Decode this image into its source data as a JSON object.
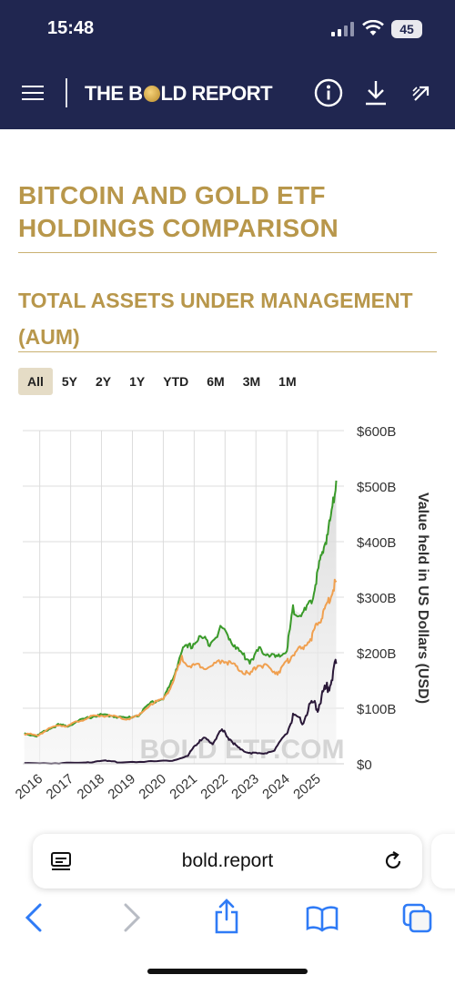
{
  "status": {
    "time": "15:48",
    "battery": "45"
  },
  "header": {
    "logo_left": "THE B",
    "logo_right": "LD REPORT",
    "icons": [
      "menu-icon",
      "info-icon",
      "download-icon",
      "share-icon"
    ]
  },
  "article": {
    "title": "BITCOIN AND GOLD ETF HOLDINGS COMPARISON",
    "subtitle": "TOTAL ASSETS UNDER MANAGEMENT (AUM)"
  },
  "ranges": {
    "items": [
      "All",
      "5Y",
      "2Y",
      "1Y",
      "YTD",
      "6M",
      "3M",
      "1M"
    ],
    "selected": "All"
  },
  "chart_data": {
    "type": "area",
    "title": "",
    "xlabel": "",
    "ylabel": "Value held in US Dollars (USD)",
    "ylim": [
      0,
      600
    ],
    "yticks": [
      "$0",
      "$100B",
      "$200B",
      "$300B",
      "$400B",
      "$500B",
      "$600B"
    ],
    "xticks": [
      "2016",
      "2017",
      "2018",
      "2019",
      "2020",
      "2021",
      "2022",
      "2023",
      "2024",
      "2025"
    ],
    "watermark": "BOLD ETF.COM",
    "grid": true,
    "legend": "none",
    "series": [
      {
        "color": "#3a9a2a",
        "x": [
          2015.5,
          2015.9,
          2016.2,
          2016.6,
          2016.9,
          2017.3,
          2017.7,
          2018.0,
          2018.4,
          2018.8,
          2019.2,
          2019.6,
          2020.0,
          2020.3,
          2020.6,
          2020.9,
          2021.2,
          2021.5,
          2021.9,
          2022.2,
          2022.5,
          2022.8,
          2023.1,
          2023.4,
          2023.7,
          2024.0,
          2024.2,
          2024.5,
          2024.8,
          2025.0,
          2025.2,
          2025.4,
          2025.6
        ],
        "y": [
          55,
          50,
          60,
          70,
          68,
          78,
          85,
          88,
          86,
          82,
          88,
          110,
          118,
          150,
          205,
          212,
          228,
          218,
          245,
          222,
          200,
          185,
          205,
          198,
          190,
          205,
          278,
          268,
          290,
          345,
          390,
          435,
          510
        ]
      },
      {
        "color": "#f0a050",
        "x": [
          2015.5,
          2015.9,
          2016.2,
          2016.6,
          2016.9,
          2017.3,
          2017.7,
          2018.0,
          2018.4,
          2018.8,
          2019.2,
          2019.6,
          2020.0,
          2020.3,
          2020.6,
          2020.9,
          2021.2,
          2021.5,
          2021.9,
          2022.2,
          2022.5,
          2022.8,
          2023.1,
          2023.4,
          2023.7,
          2024.0,
          2024.2,
          2024.5,
          2024.8,
          2025.0,
          2025.2,
          2025.4,
          2025.6
        ],
        "y": [
          55,
          50,
          60,
          70,
          68,
          78,
          85,
          87,
          85,
          80,
          86,
          108,
          116,
          145,
          190,
          175,
          178,
          172,
          188,
          180,
          168,
          160,
          180,
          172,
          165,
          182,
          198,
          208,
          228,
          252,
          272,
          300,
          330
        ]
      },
      {
        "color": "#2a1838",
        "x": [
          2015.5,
          2016.5,
          2017.5,
          2018.0,
          2018.5,
          2019.5,
          2020.3,
          2020.8,
          2021.0,
          2021.3,
          2021.6,
          2021.9,
          2022.2,
          2022.5,
          2022.8,
          2023.2,
          2023.6,
          2024.0,
          2024.2,
          2024.5,
          2024.8,
          2025.0,
          2025.2,
          2025.4,
          2025.6
        ],
        "y": [
          1,
          1,
          2,
          6,
          3,
          4,
          6,
          14,
          32,
          45,
          38,
          60,
          42,
          25,
          20,
          18,
          24,
          55,
          85,
          75,
          110,
          100,
          130,
          145,
          180
        ]
      }
    ]
  }
}
